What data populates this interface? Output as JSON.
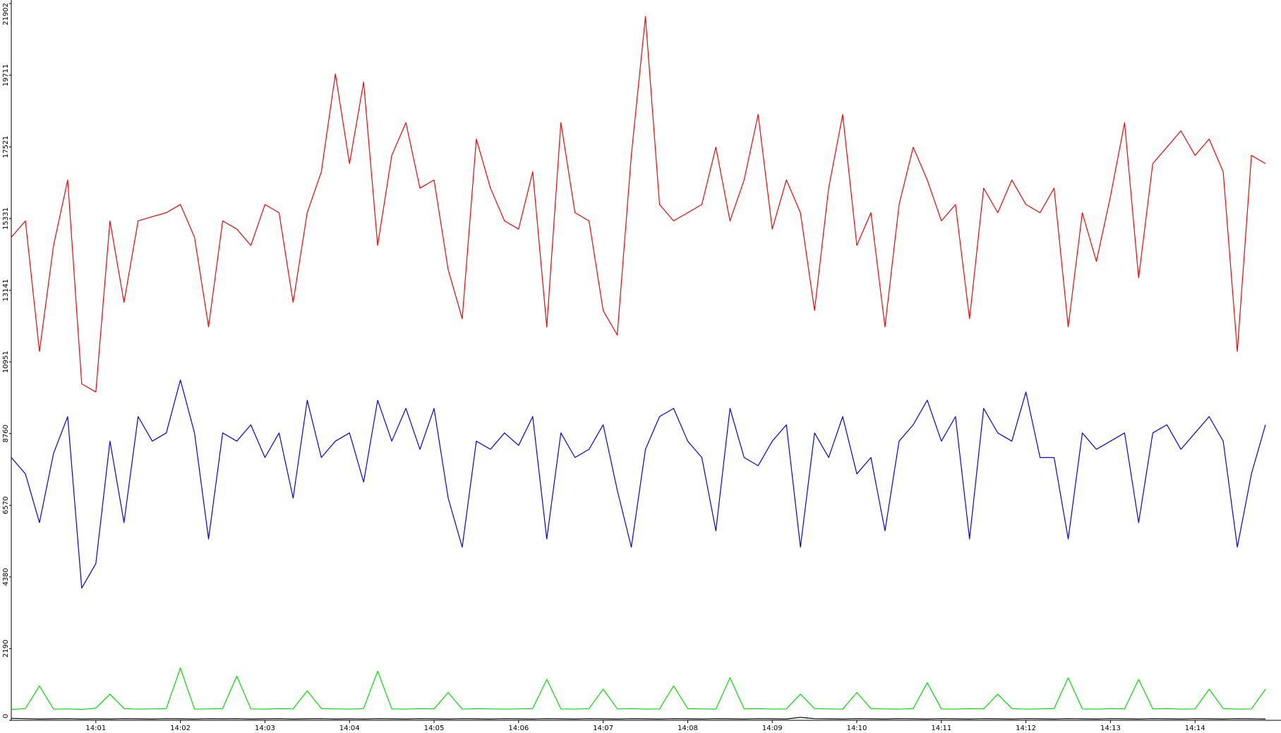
{
  "chart_data": {
    "type": "line",
    "categories": [
      null,
      null,
      null,
      null,
      null,
      null,
      "14:01",
      null,
      null,
      null,
      null,
      null,
      "14:02",
      null,
      null,
      null,
      null,
      null,
      "14:03",
      null,
      null,
      null,
      null,
      null,
      "14:04",
      null,
      null,
      null,
      null,
      null,
      "14:05",
      null,
      null,
      null,
      null,
      null,
      "14:06",
      null,
      null,
      null,
      null,
      null,
      "14:07",
      null,
      null,
      null,
      null,
      null,
      "14:08",
      null,
      null,
      null,
      null,
      null,
      "14:09",
      null,
      null,
      null,
      null,
      null,
      "14:10",
      null,
      null,
      null,
      null,
      null,
      "14:11",
      null,
      null,
      null,
      null,
      null,
      "14:12",
      null,
      null,
      null,
      null,
      null,
      "14:13",
      null,
      null,
      null,
      null,
      null,
      "14:14",
      null,
      null,
      null,
      null,
      null
    ],
    "series": [
      {
        "color": "#ff0000",
        "values": [
          14760,
          15260,
          11270,
          14510,
          16510,
          10280,
          10030,
          15260,
          12770,
          15260,
          15390,
          15510,
          15760,
          14760,
          12020,
          15260,
          15010,
          14510,
          15760,
          15510,
          12770,
          15510,
          16760,
          19750,
          17010,
          19500,
          14510,
          17260,
          18260,
          16260,
          16510,
          13770,
          12270,
          17760,
          16260,
          15260,
          15010,
          16760,
          12020,
          18260,
          15510,
          15260,
          12520,
          11770,
          17260,
          21500,
          15760,
          15260,
          15510,
          15760,
          17510,
          15260,
          16510,
          18510,
          15010,
          16510,
          15510,
          12520,
          16260,
          18510,
          14510,
          15510,
          12020,
          15760,
          17510,
          16510,
          15260,
          15760,
          12270,
          16260,
          15510,
          16510,
          15760,
          15510,
          16260,
          12020,
          15510,
          14020,
          16010,
          18260,
          13520,
          17010,
          17510,
          18010,
          17260,
          17760,
          16760,
          11270,
          17260,
          17010
        ]
      },
      {
        "color": "#0000ff",
        "values": [
          8030,
          7530,
          6040,
          8160,
          9280,
          4040,
          4790,
          8530,
          6040,
          9280,
          8530,
          8780,
          10400,
          8780,
          5540,
          8780,
          8530,
          9030,
          8030,
          8780,
          6790,
          9780,
          8030,
          8530,
          8780,
          7280,
          9780,
          8530,
          9530,
          8280,
          9530,
          6790,
          5290,
          8530,
          8280,
          8780,
          8400,
          9280,
          5540,
          8780,
          8030,
          8280,
          9030,
          7030,
          5290,
          8280,
          9280,
          9530,
          8530,
          8030,
          5790,
          9530,
          8030,
          7780,
          8530,
          9030,
          5290,
          8780,
          8030,
          9280,
          7530,
          8030,
          5790,
          8530,
          9030,
          9780,
          8530,
          9280,
          5540,
          9530,
          8780,
          8530,
          10030,
          8030,
          8030,
          5540,
          8780,
          8280,
          8530,
          8780,
          6040,
          8780,
          9030,
          8280,
          8780,
          9280,
          8530,
          5290,
          7530,
          9030
        ]
      },
      {
        "color": "#00e000",
        "values": [
          330,
          360,
          1050,
          340,
          350,
          330,
          370,
          800,
          360,
          340,
          350,
          360,
          1600,
          340,
          350,
          360,
          1350,
          350,
          340,
          360,
          350,
          900,
          360,
          350,
          340,
          360,
          1500,
          350,
          340,
          360,
          350,
          850,
          340,
          360,
          350,
          340,
          350,
          360,
          1250,
          350,
          340,
          360,
          950,
          350,
          360,
          340,
          350,
          1050,
          360,
          350,
          340,
          1300,
          350,
          360,
          340,
          350,
          800,
          360,
          350,
          340,
          850,
          360,
          350,
          340,
          360,
          1150,
          350,
          340,
          360,
          350,
          800,
          360,
          340,
          350,
          360,
          1300,
          350,
          340,
          360,
          350,
          1250,
          350,
          360,
          340,
          350,
          950,
          360,
          340,
          350,
          950
        ]
      },
      {
        "color": "#000000",
        "values": [
          60,
          50,
          40,
          45,
          50,
          40,
          45,
          40,
          50,
          45,
          40,
          50,
          45,
          40,
          50,
          45,
          50,
          40,
          45,
          50,
          40,
          45,
          50,
          40,
          45,
          40,
          50,
          45,
          40,
          50,
          45,
          40,
          50,
          45,
          40,
          50,
          45,
          40,
          50,
          45,
          40,
          50,
          45,
          40,
          50,
          45,
          40,
          50,
          45,
          40,
          50,
          45,
          40,
          50,
          45,
          40,
          90,
          50,
          45,
          40,
          50,
          45,
          40,
          50,
          45,
          40,
          50,
          45,
          40,
          50,
          45,
          40,
          50,
          45,
          40,
          50,
          45,
          40,
          50,
          45,
          40,
          50,
          45,
          40,
          50,
          45,
          40,
          50,
          45,
          40
        ]
      }
    ],
    "ylim": [
      0,
      21902
    ],
    "yticks": [
      0,
      2190,
      4380,
      6570,
      8760,
      10951,
      13141,
      15331,
      17521,
      19711,
      21902
    ]
  }
}
